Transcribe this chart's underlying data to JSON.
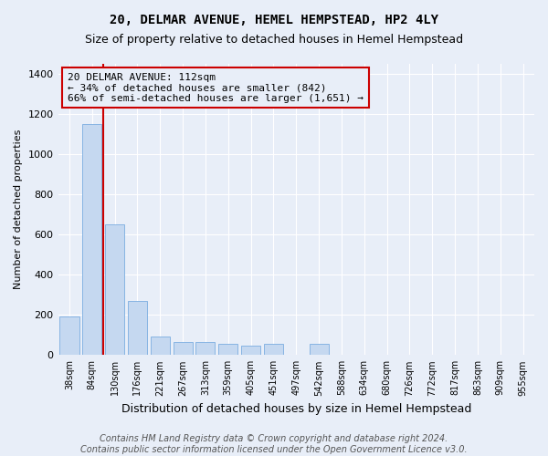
{
  "title1": "20, DELMAR AVENUE, HEMEL HEMPSTEAD, HP2 4LY",
  "title2": "Size of property relative to detached houses in Hemel Hempstead",
  "xlabel": "Distribution of detached houses by size in Hemel Hempstead",
  "ylabel": "Number of detached properties",
  "footer1": "Contains HM Land Registry data © Crown copyright and database right 2024.",
  "footer2": "Contains public sector information licensed under the Open Government Licence v3.0.",
  "annotation_line1": "20 DELMAR AVENUE: 112sqm",
  "annotation_line2": "← 34% of detached houses are smaller (842)",
  "annotation_line3": "66% of semi-detached houses are larger (1,651) →",
  "bar_color": "#c5d8f0",
  "bar_edge_color": "#7aade0",
  "vline_color": "#cc0000",
  "annotation_box_edgecolor": "#cc0000",
  "background_color": "#e8eef8",
  "grid_color": "#ffffff",
  "categories": [
    "38sqm",
    "84sqm",
    "130sqm",
    "176sqm",
    "221sqm",
    "267sqm",
    "313sqm",
    "359sqm",
    "405sqm",
    "451sqm",
    "497sqm",
    "542sqm",
    "588sqm",
    "634sqm",
    "680sqm",
    "726sqm",
    "772sqm",
    "817sqm",
    "863sqm",
    "909sqm",
    "955sqm"
  ],
  "values": [
    190,
    1150,
    650,
    270,
    90,
    65,
    65,
    55,
    45,
    55,
    0,
    55,
    0,
    0,
    0,
    0,
    0,
    0,
    0,
    0,
    0
  ],
  "vline_x_index": 1.5,
  "ylim": [
    0,
    1450
  ],
  "yticks": [
    0,
    200,
    400,
    600,
    800,
    1000,
    1200,
    1400
  ],
  "title1_fontsize": 10,
  "title2_fontsize": 9,
  "xlabel_fontsize": 9,
  "ylabel_fontsize": 8,
  "tick_fontsize": 8,
  "xtick_fontsize": 7,
  "footer_fontsize": 7,
  "ann_fontsize": 8
}
